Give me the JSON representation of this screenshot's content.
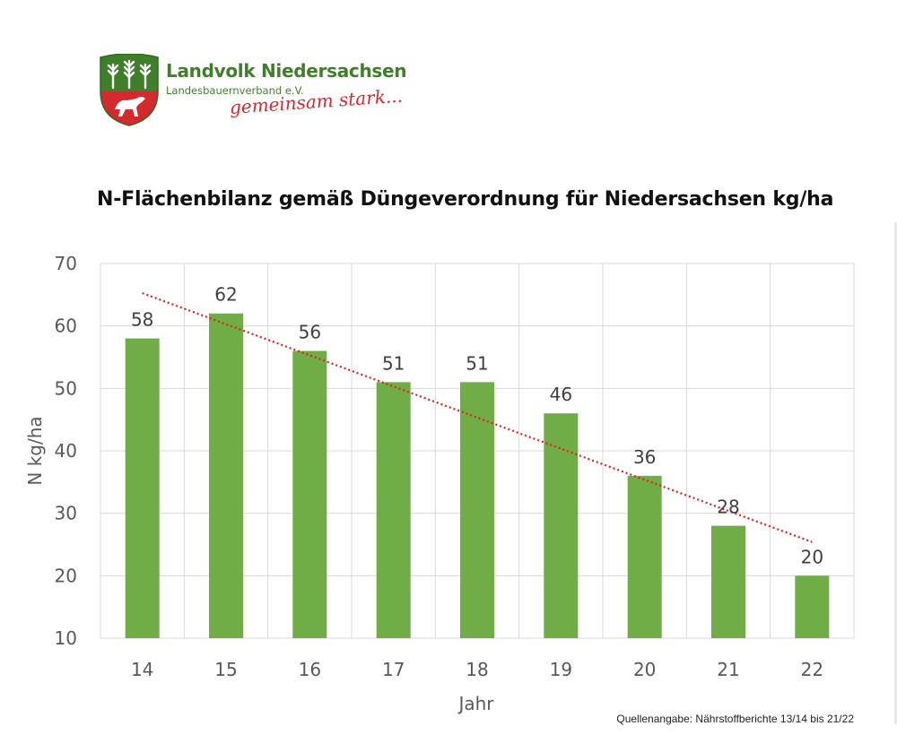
{
  "logo": {
    "title": "Landvolk Niedersachsen",
    "subtitle": "Landesbauernverband e.V.",
    "slogan": "gemeinsam stark..."
  },
  "colors": {
    "bar": "#70ad47",
    "trendline": "#e0201f",
    "grid": "#d9d9d9",
    "axis_text": "#595959",
    "logo_green": "#3f7f2a",
    "logo_red": "#d42a2f"
  },
  "source_note": "Quellenangabe: Nährstoffberichte 13/14 bis 21/22",
  "chart_data": {
    "type": "bar",
    "title": "N-Flächenbilanz gemäß Düngeverordnung für Niedersachsen kg/ha",
    "xlabel": "Jahr",
    "ylabel": "N kg/ha",
    "categories": [
      "14",
      "15",
      "16",
      "17",
      "18",
      "19",
      "20",
      "21",
      "22"
    ],
    "values": [
      58,
      62,
      56,
      51,
      51,
      46,
      36,
      28,
      20
    ],
    "ylim": [
      10,
      70
    ],
    "yticks": [
      10,
      20,
      30,
      40,
      50,
      60,
      70
    ],
    "grid": true,
    "data_labels": true,
    "trendline": {
      "type": "linear",
      "style": "dotted"
    }
  }
}
